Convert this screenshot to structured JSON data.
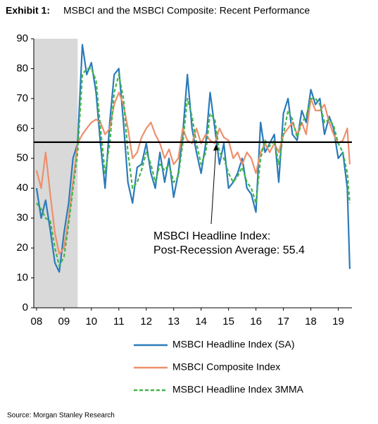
{
  "chart_data": {
    "type": "line",
    "title_label": "Exhibit 1:",
    "title": "MSBCI and the MSBCI Composite: Recent Performance",
    "source": "Source: Morgan Stanley Research",
    "x": [
      2008.0,
      2008.17,
      2008.33,
      2008.5,
      2008.67,
      2008.83,
      2009.0,
      2009.17,
      2009.33,
      2009.5,
      2009.67,
      2009.83,
      2010.0,
      2010.17,
      2010.33,
      2010.5,
      2010.67,
      2010.83,
      2011.0,
      2011.17,
      2011.33,
      2011.5,
      2011.67,
      2011.83,
      2012.0,
      2012.17,
      2012.33,
      2012.5,
      2012.67,
      2012.83,
      2013.0,
      2013.17,
      2013.33,
      2013.5,
      2013.67,
      2013.83,
      2014.0,
      2014.17,
      2014.33,
      2014.5,
      2014.67,
      2014.83,
      2015.0,
      2015.17,
      2015.33,
      2015.5,
      2015.67,
      2015.83,
      2016.0,
      2016.17,
      2016.33,
      2016.5,
      2016.67,
      2016.83,
      2017.0,
      2017.17,
      2017.33,
      2017.5,
      2017.67,
      2017.83,
      2018.0,
      2018.17,
      2018.33,
      2018.5,
      2018.67,
      2018.83,
      2019.0,
      2019.17,
      2019.33,
      2019.42
    ],
    "series": [
      {
        "name": "MSBCI Headline Index (SA)",
        "color": "#2b7bba",
        "dash": false,
        "values": [
          40,
          30,
          36,
          26,
          15,
          12,
          25,
          35,
          50,
          55,
          88,
          78,
          82,
          72,
          55,
          40,
          62,
          78,
          80,
          62,
          42,
          35,
          47,
          48,
          55,
          45,
          40,
          52,
          42,
          50,
          37,
          45,
          58,
          78,
          60,
          52,
          45,
          55,
          72,
          60,
          48,
          55,
          40,
          42,
          45,
          50,
          40,
          38,
          32,
          62,
          52,
          55,
          58,
          42,
          65,
          70,
          58,
          56,
          66,
          62,
          73,
          68,
          70,
          58,
          64,
          60,
          50,
          52,
          40,
          13
        ]
      },
      {
        "name": "MSBCI Composite Index",
        "color": "#ee8f6c",
        "dash": false,
        "values": [
          46,
          40,
          52,
          38,
          25,
          18,
          20,
          30,
          42,
          55,
          58,
          60,
          62,
          63,
          62,
          58,
          60,
          68,
          72,
          68,
          60,
          50,
          52,
          57,
          60,
          62,
          58,
          55,
          50,
          53,
          48,
          50,
          60,
          56,
          55,
          60,
          55,
          58,
          56,
          55,
          60,
          57,
          56,
          50,
          52,
          48,
          52,
          50,
          45,
          52,
          55,
          52,
          55,
          52,
          58,
          60,
          62,
          58,
          62,
          58,
          70,
          66,
          66,
          68,
          62,
          58,
          55,
          56,
          60,
          48
        ]
      },
      {
        "name": "MSBCI Headline Index 3MMA",
        "color": "#43b649",
        "dash": true,
        "values": [
          35,
          33,
          30,
          29,
          20,
          14,
          17,
          28,
          40,
          52,
          78,
          80,
          80,
          76,
          60,
          45,
          55,
          72,
          78,
          70,
          52,
          40,
          42,
          46,
          52,
          48,
          42,
          48,
          46,
          48,
          42,
          44,
          55,
          70,
          64,
          55,
          48,
          52,
          65,
          63,
          52,
          50,
          45,
          42,
          44,
          47,
          42,
          40,
          35,
          50,
          56,
          54,
          56,
          48,
          58,
          66,
          63,
          57,
          62,
          64,
          70,
          70,
          68,
          62,
          63,
          61,
          55,
          52,
          45,
          35
        ]
      }
    ],
    "xlim": [
      2007.9,
      2019.5
    ],
    "xticks": [
      {
        "value": 2008,
        "label": "08"
      },
      {
        "value": 2009,
        "label": "09"
      },
      {
        "value": 2010,
        "label": "10"
      },
      {
        "value": 2011,
        "label": "11"
      },
      {
        "value": 2012,
        "label": "12"
      },
      {
        "value": 2013,
        "label": "13"
      },
      {
        "value": 2014,
        "label": "14"
      },
      {
        "value": 2015,
        "label": "15"
      },
      {
        "value": 2016,
        "label": "16"
      },
      {
        "value": 2017,
        "label": "17"
      },
      {
        "value": 2018,
        "label": "18"
      },
      {
        "value": 2019,
        "label": "19"
      }
    ],
    "ylim": [
      0,
      90
    ],
    "yticks": [
      0,
      10,
      20,
      30,
      40,
      50,
      60,
      70,
      80,
      90
    ],
    "grid": false,
    "recession_shading": [
      2007.9,
      2009.5
    ],
    "reference_line": 55.4,
    "annotation": [
      "MSBCI Headline Index:",
      "Post-Recession Average: 55.4"
    ],
    "legend": "bottom"
  }
}
